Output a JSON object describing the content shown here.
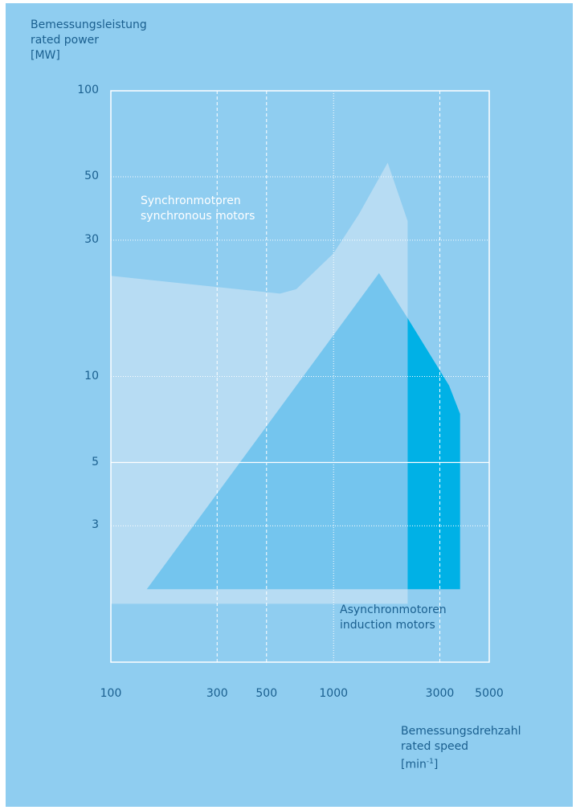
{
  "colors": {
    "background": "#8fcdf0",
    "synchronous_region": "#b7dcf3",
    "induction_region": "#74c5ee",
    "induction_high_speed": "#00b1e6",
    "frame": "#ffffff",
    "text": "#1a5f8f"
  },
  "y_axis_label": {
    "line1": "Bemessungsleistung",
    "line2": "rated power",
    "line3": "[MW]"
  },
  "x_axis_label": {
    "line1": "Bemessungsdrehzahl",
    "line2": "rated speed",
    "line3_base": "[min",
    "line3_sup": "-1",
    "line3_end": "]"
  },
  "region_labels": {
    "sync_line1": "Synchronmotoren",
    "sync_line2": "synchronous motors",
    "induction_line1": "Asynchronmotoren",
    "induction_line2": "induction motors"
  },
  "chart_data": {
    "type": "area",
    "x_scale": "log",
    "y_scale": "log",
    "xlim": [
      100,
      5000
    ],
    "ylim": [
      1,
      100
    ],
    "x_ticks": [
      100,
      300,
      500,
      1000,
      3000,
      5000
    ],
    "x_tick_labels": [
      "100",
      "300",
      "500",
      "1000",
      "3000",
      "5000"
    ],
    "y_ticks": [
      3,
      5,
      10,
      30,
      50,
      100
    ],
    "y_tick_labels": [
      "3",
      "5",
      "10",
      "30",
      "50",
      "100"
    ],
    "grid_dashed_x": [
      300,
      500,
      3000
    ],
    "grid_dotted_x": [
      1000
    ],
    "grid_dotted_y": [
      3,
      10,
      30,
      50
    ],
    "grid_solid_y": [
      5
    ],
    "series": [
      {
        "name": "Synchronmotoren / synchronous motors",
        "color": "#b7dcf3",
        "polygon": [
          [
            100,
            22.5
          ],
          [
            575,
            19.5
          ],
          [
            680,
            20.2
          ],
          [
            1000,
            27
          ],
          [
            1300,
            37
          ],
          [
            1750,
            56
          ],
          [
            2150,
            35
          ],
          [
            2150,
            1.6
          ],
          [
            100,
            1.6
          ]
        ]
      },
      {
        "name": "Asynchronmotoren / induction motors",
        "color": "#74c5ee",
        "polygon": [
          [
            145,
            1.8
          ],
          [
            1600,
            23
          ],
          [
            2150,
            16
          ],
          [
            2150,
            1.8
          ]
        ]
      },
      {
        "name": "Asynchronmotoren / induction motors (high speed)",
        "color": "#00b1e6",
        "polygon": [
          [
            2150,
            16
          ],
          [
            3300,
            9.3
          ],
          [
            3700,
            7.4
          ],
          [
            3700,
            1.8
          ],
          [
            2150,
            1.8
          ]
        ]
      }
    ]
  }
}
